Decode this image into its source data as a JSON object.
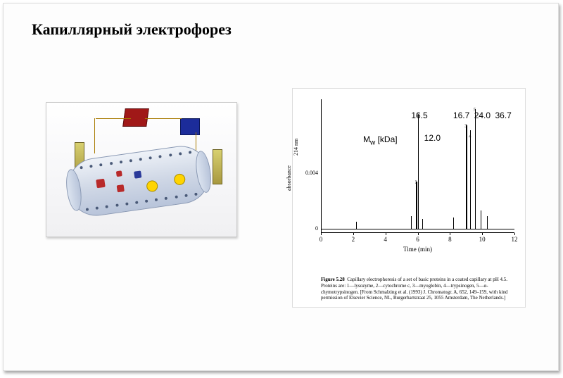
{
  "title": "Капиллярный  электрофорез",
  "chart": {
    "type": "line-peaks",
    "mw_label": "M",
    "mw_sub": "w",
    "mw_unit": " [kDa]",
    "peak_labels": [
      "12.0",
      "16.5",
      "16.7",
      "24.0",
      "36.7"
    ],
    "peak_nums": [
      "1",
      "2",
      "3",
      "4",
      "5"
    ],
    "peaks": [
      {
        "x_min": 5.9,
        "height_pct": 36,
        "label_idx": 0,
        "num_dy": -6
      },
      {
        "x_min": 6.0,
        "height_pct": 86,
        "label_idx": 1,
        "num_dy": -6
      },
      {
        "x_min": 9.0,
        "height_pct": 78,
        "label_idx": 2,
        "num_dy": -6
      },
      {
        "x_min": 9.25,
        "height_pct": 74,
        "label_idx": 3,
        "num_dy": -14
      },
      {
        "x_min": 9.55,
        "height_pct": 90,
        "label_idx": 4,
        "num_dy": -6
      }
    ],
    "minor_peaks": [
      {
        "x_min": 2.2,
        "height_pct": 6
      },
      {
        "x_min": 5.6,
        "height_pct": 10
      },
      {
        "x_min": 6.3,
        "height_pct": 8
      },
      {
        "x_min": 8.2,
        "height_pct": 9
      },
      {
        "x_min": 9.9,
        "height_pct": 14
      },
      {
        "x_min": 10.3,
        "height_pct": 10
      }
    ],
    "x_axis": {
      "label": "Time (min)",
      "min": 0,
      "max": 12,
      "ticks": [
        0,
        2,
        4,
        6,
        8,
        10,
        12
      ]
    },
    "y_axis": {
      "label_top": "214 nm",
      "label_bottom": "absorbance",
      "ticks": [
        {
          "pct": 3,
          "label": "0"
        },
        {
          "pct": 45,
          "label": "0.004"
        }
      ]
    },
    "colors": {
      "line": "#000000",
      "background": "#ffffff",
      "annotation": "#000000"
    }
  },
  "caption": {
    "fig_label": "Figure 5.28",
    "text": "Capillary electrophoresis of a set of basic proteins in a coated capillary at pH 4.5. Proteins are: 1—lysozyme, 2—cytochrome c, 3—myoglobin, 4—trypsinogen, 5—α-chymotrypsinogen. [From Schmalzing et al. (1993) J. Chromatogr. A, 652, 149–159, with kind permission of Elsevier Science, NL, Burgerhartstraat 25, 1055 Amsterdam, The Netherlands.]"
  },
  "diagram": {
    "colors": {
      "tube_light": "#eef2f8",
      "tube_dark": "#b8c4da",
      "red": "#b82a2a",
      "blue": "#2a3a9a",
      "yellow": "#ffd400",
      "wire": "#a87a00",
      "electrode": "#a89840"
    }
  }
}
